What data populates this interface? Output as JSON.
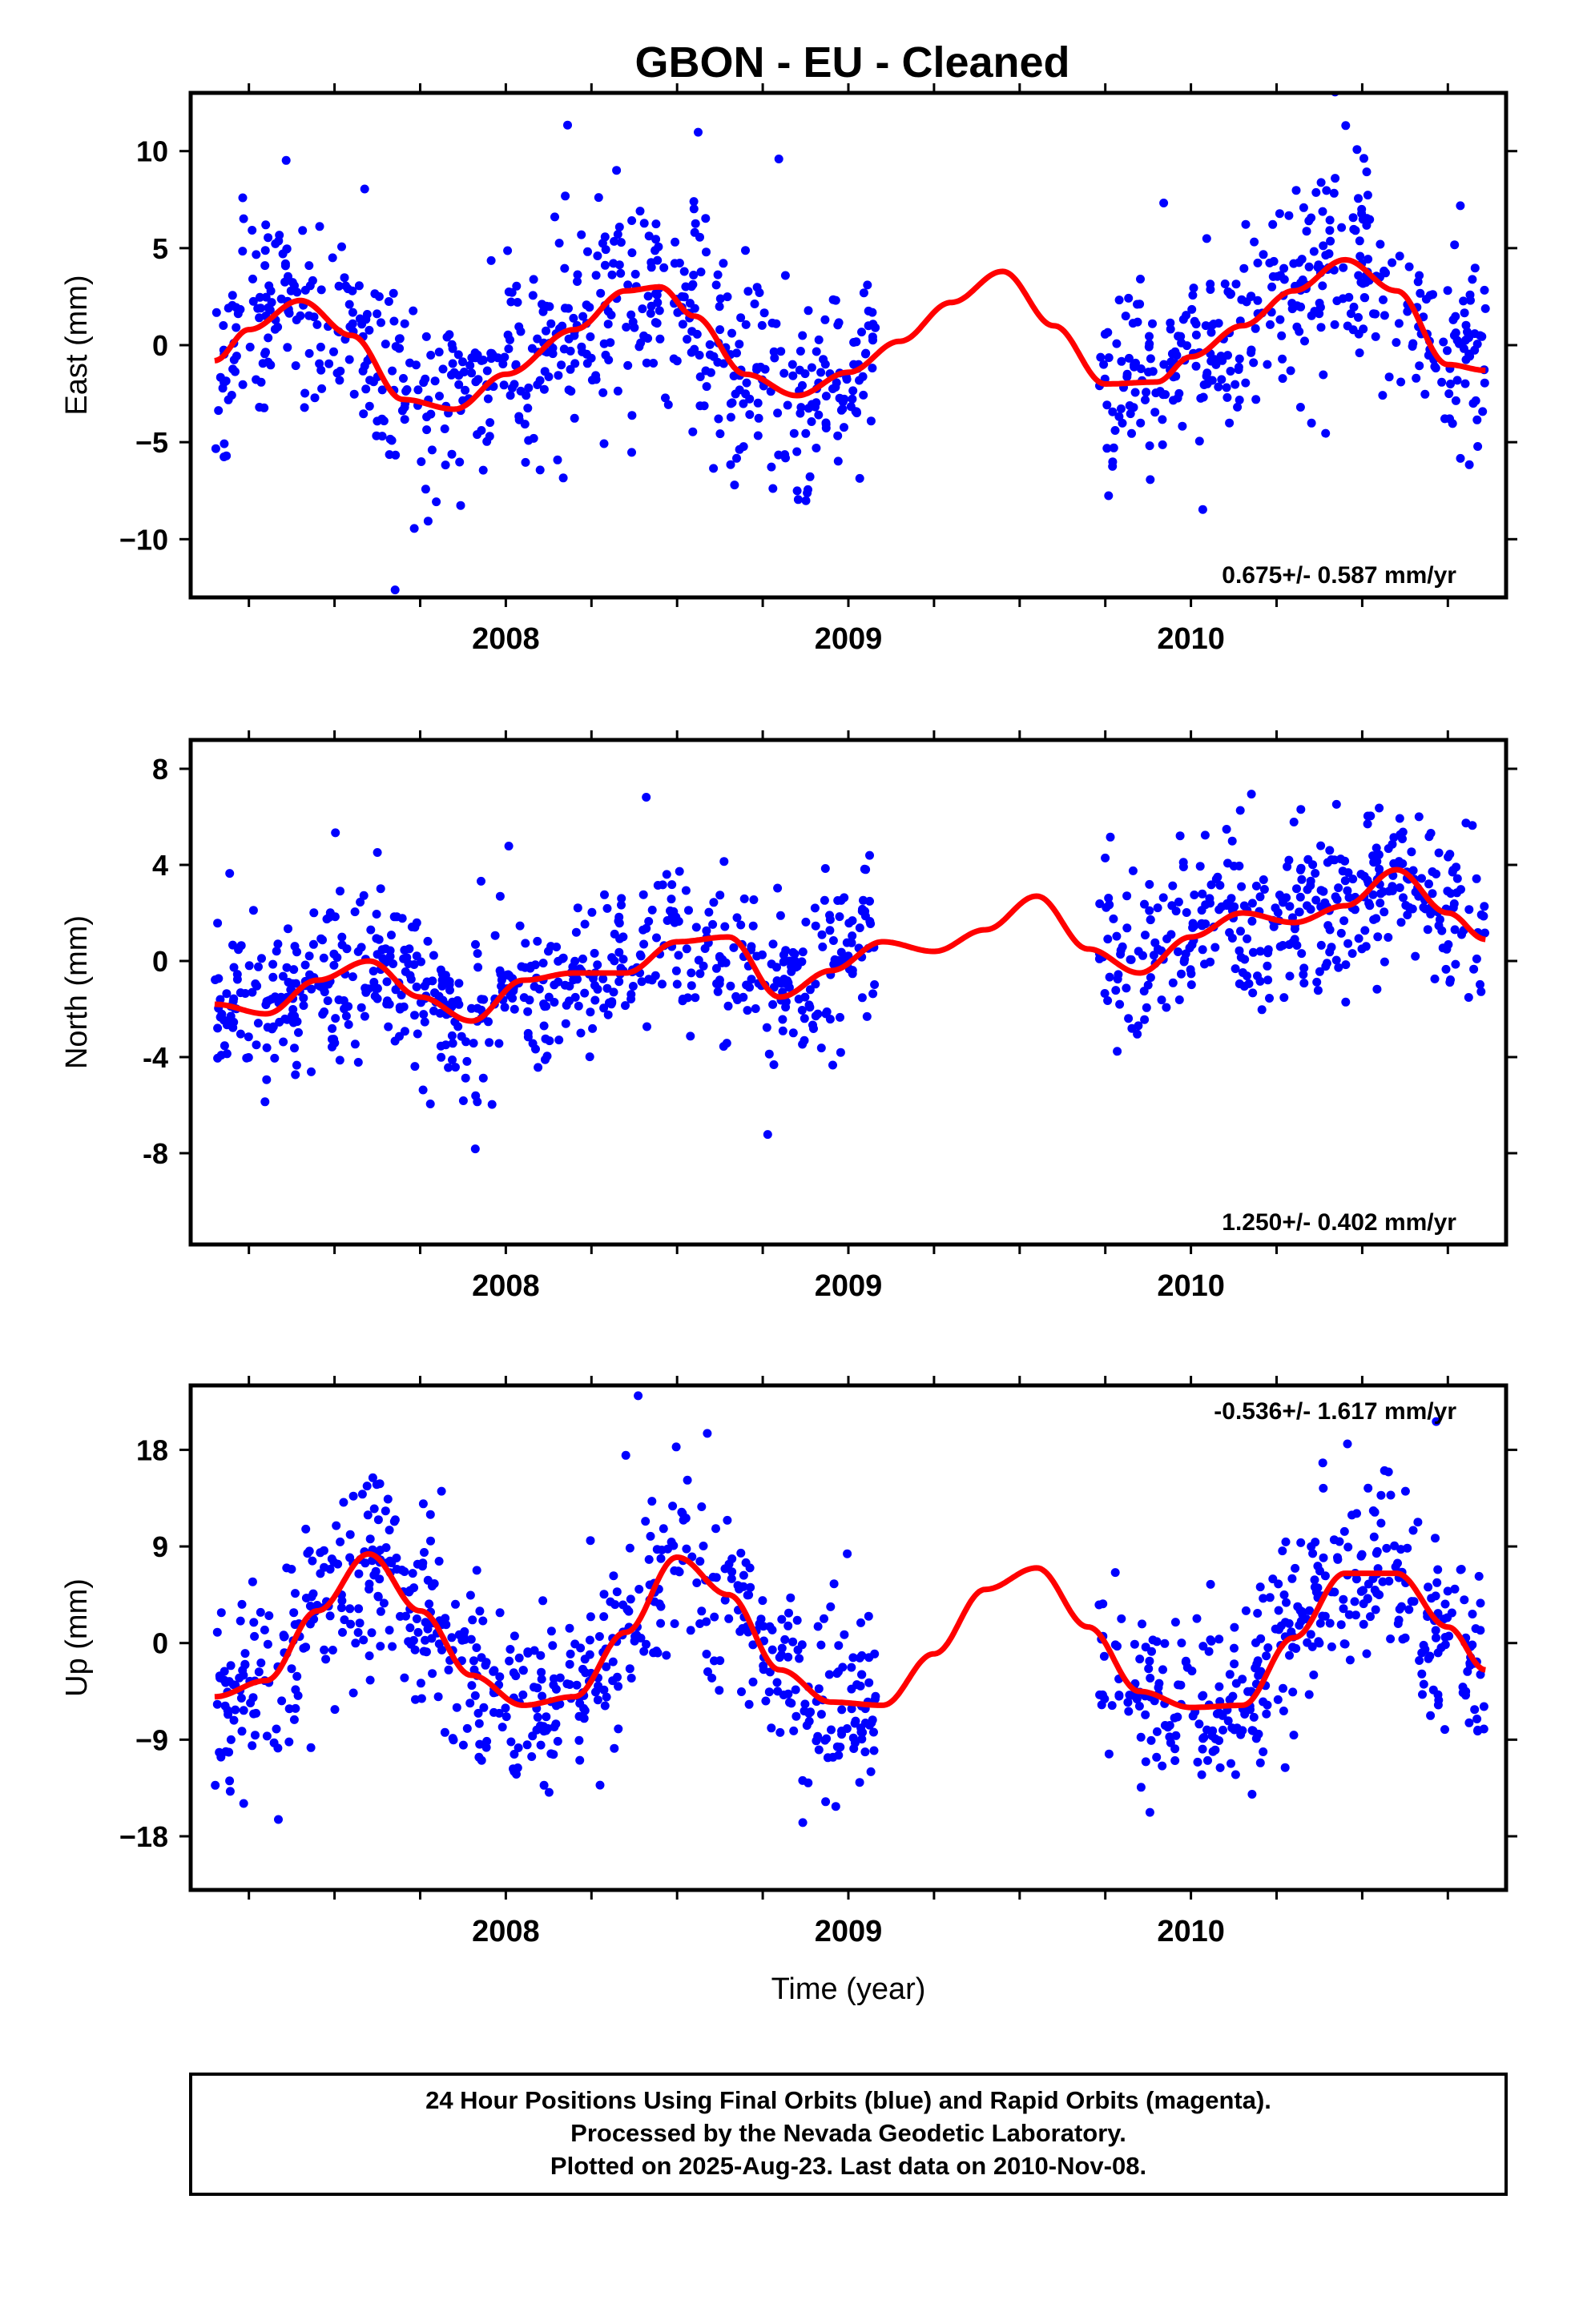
{
  "title": "GBON  - EU - Cleaned",
  "footer": {
    "lines": [
      "24 Hour Positions Using Final Orbits (blue) and Rapid Orbits (magenta).",
      "Processed by the Nevada Geodetic Laboratory.",
      "Plotted on 2025-Aug-23. Last data on 2010-Nov-08."
    ]
  },
  "colors": {
    "points": "#0000ff",
    "fit": "#ff0000",
    "frame": "#000000"
  },
  "chart_data": [
    {
      "type": "scatter",
      "ylabel": "East (mm)",
      "xlabel": "",
      "rate_label": "0.675+/- 0.587 mm/yr",
      "xlim": [
        2007.08,
        2010.92
      ],
      "ylim": [
        -13,
        13
      ],
      "yticks": [
        10,
        5,
        0,
        -5,
        -10
      ],
      "ytick_labels": [
        "10",
        "5",
        "0",
        "−5",
        "−10"
      ],
      "xticks": [
        2008,
        2009,
        2010
      ],
      "xtick_labels": [
        "2008",
        "2009",
        "2010"
      ],
      "scatter_series": {
        "color": "#0000ff",
        "segments": [
          [
            2007.15,
            2009.08
          ],
          [
            2009.73,
            2010.86
          ]
        ],
        "noise": 2.5,
        "count": 1000
      },
      "fit_series": {
        "color": "#ff0000",
        "x": [
          2007.15,
          2007.25,
          2007.4,
          2007.55,
          2007.7,
          2007.85,
          2008.0,
          2008.2,
          2008.35,
          2008.45,
          2008.55,
          2008.7,
          2008.85,
          2009.0,
          2009.15,
          2009.3,
          2009.45,
          2009.6,
          2009.75,
          2009.9,
          2010.0,
          2010.15,
          2010.3,
          2010.45,
          2010.6,
          2010.75,
          2010.86
        ],
        "y": [
          -0.8,
          0.8,
          2.3,
          0.5,
          -2.8,
          -3.3,
          -1.5,
          0.8,
          2.8,
          3.0,
          1.5,
          -1.5,
          -2.6,
          -1.4,
          0.2,
          2.2,
          3.8,
          1.0,
          -2.0,
          -1.9,
          -0.6,
          1.0,
          2.8,
          4.4,
          2.8,
          -1.0,
          -1.3
        ]
      }
    },
    {
      "type": "scatter",
      "ylabel": "North (mm)",
      "xlabel": "",
      "rate_label": "1.250+/- 0.402 mm/yr",
      "xlim": [
        2007.08,
        2010.92
      ],
      "ylim": [
        -11.8,
        9.2
      ],
      "yticks": [
        8,
        4,
        0,
        -4,
        -8
      ],
      "ytick_labels": [
        "8",
        "4",
        "0",
        "-4",
        "-8"
      ],
      "xticks": [
        2008,
        2009,
        2010
      ],
      "xtick_labels": [
        "2008",
        "2009",
        "2010"
      ],
      "scatter_series": {
        "color": "#0000ff",
        "segments": [
          [
            2007.15,
            2009.08
          ],
          [
            2009.73,
            2010.86
          ]
        ],
        "noise": 1.7,
        "count": 1000
      },
      "fit_series": {
        "color": "#ff0000",
        "x": [
          2007.15,
          2007.3,
          2007.45,
          2007.6,
          2007.75,
          2007.9,
          2008.05,
          2008.2,
          2008.35,
          2008.5,
          2008.65,
          2008.8,
          2008.95,
          2009.1,
          2009.25,
          2009.4,
          2009.55,
          2009.7,
          2009.85,
          2010.0,
          2010.15,
          2010.3,
          2010.45,
          2010.6,
          2010.75,
          2010.86
        ],
        "y": [
          -1.8,
          -2.2,
          -0.8,
          0.0,
          -1.5,
          -2.5,
          -0.8,
          -0.5,
          -0.5,
          0.8,
          1.0,
          -1.5,
          -0.4,
          0.8,
          0.4,
          1.3,
          2.7,
          0.5,
          -0.5,
          1.0,
          2.0,
          1.6,
          2.3,
          3.8,
          2.0,
          0.9
        ]
      }
    },
    {
      "type": "scatter",
      "ylabel": "Up (mm)",
      "xlabel": "Time (year)",
      "rate_label": "-0.536+/- 1.617 mm/yr",
      "xlim": [
        2007.08,
        2010.92
      ],
      "ylim": [
        -23,
        24
      ],
      "yticks": [
        18,
        9,
        0,
        -9,
        -18
      ],
      "ytick_labels": [
        "18",
        "9",
        "0",
        "−9",
        "−18"
      ],
      "xticks": [
        2008,
        2009,
        2010
      ],
      "xtick_labels": [
        "2008",
        "2009",
        "2010"
      ],
      "scatter_series": {
        "color": "#0000ff",
        "segments": [
          [
            2007.15,
            2009.08
          ],
          [
            2009.73,
            2010.86
          ]
        ],
        "noise": 4.2,
        "count": 1000
      },
      "fit_series": {
        "color": "#ff0000",
        "x": [
          2007.15,
          2007.3,
          2007.45,
          2007.6,
          2007.75,
          2007.9,
          2008.05,
          2008.2,
          2008.35,
          2008.5,
          2008.65,
          2008.8,
          2008.95,
          2009.1,
          2009.25,
          2009.4,
          2009.55,
          2009.7,
          2009.85,
          2010.0,
          2010.15,
          2010.3,
          2010.45,
          2010.6,
          2010.75,
          2010.86
        ],
        "y": [
          -5,
          -3.5,
          3.0,
          8.3,
          3.0,
          -3.0,
          -5.8,
          -5.0,
          1.0,
          8.0,
          4.5,
          -2.5,
          -5.5,
          -5.8,
          -1.0,
          5.0,
          7.0,
          1.5,
          -4.5,
          -6.0,
          -5.8,
          0.5,
          6.5,
          6.5,
          1.5,
          -2.5
        ]
      }
    }
  ]
}
